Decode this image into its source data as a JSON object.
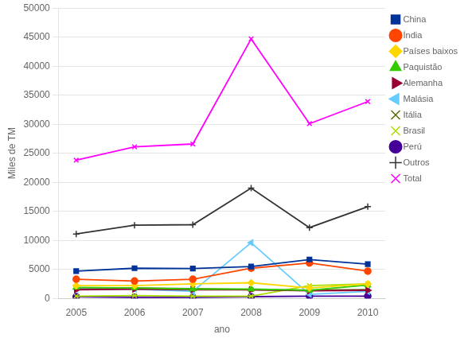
{
  "chart_data": {
    "type": "line",
    "x": [
      2005,
      2006,
      2007,
      2008,
      2009,
      2010
    ],
    "series": [
      {
        "name": "China",
        "color": "#003399",
        "marker": "square",
        "values": [
          4700,
          5200,
          5150,
          5500,
          6700,
          5900
        ]
      },
      {
        "name": "Índia",
        "color": "#FF4500",
        "marker": "circle",
        "values": [
          3300,
          3000,
          3300,
          5200,
          6100,
          4700
        ]
      },
      {
        "name": "Países baixos",
        "color": "#FFD700",
        "marker": "diamond",
        "values": [
          2200,
          2200,
          2500,
          2700,
          1800,
          2500
        ]
      },
      {
        "name": "Paquistão",
        "color": "#33CC00",
        "marker": "triangle-up",
        "values": [
          1900,
          1800,
          1600,
          1600,
          1400,
          2300
        ]
      },
      {
        "name": "Alemanha",
        "color": "#990033",
        "marker": "triangle-right",
        "values": [
          1500,
          1600,
          1500,
          1500,
          1300,
          1400
        ]
      },
      {
        "name": "Malásia",
        "color": "#66CCFF",
        "marker": "triangle-left",
        "values": [
          1600,
          1600,
          1200,
          9600,
          700,
          1200
        ]
      },
      {
        "name": "Itália",
        "color": "#556B00",
        "marker": "x",
        "values": [
          1800,
          1800,
          1700,
          1500,
          1400,
          1500
        ]
      },
      {
        "name": "Brasil",
        "color": "#AADD00",
        "marker": "x",
        "values": [
          400,
          500,
          400,
          400,
          2200,
          2500
        ]
      },
      {
        "name": "Perú",
        "color": "#440099",
        "marker": "circle",
        "values": [
          300,
          200,
          200,
          300,
          400,
          400
        ]
      },
      {
        "name": "Outros",
        "color": "#333333",
        "marker": "plus",
        "values": [
          11100,
          12600,
          12700,
          19000,
          12200,
          15800
        ]
      },
      {
        "name": "Total",
        "color": "#FF00FF",
        "marker": "x",
        "values": [
          23800,
          26100,
          26600,
          44700,
          30100,
          33900
        ]
      }
    ],
    "xlabel": "ano",
    "ylabel": "Miles de TM",
    "xlim": [
      2004.7,
      2010.3
    ],
    "xticks": [
      2005,
      2006,
      2007,
      2008,
      2009,
      2010
    ],
    "ylim": [
      0,
      50000
    ],
    "yticks": [
      0,
      5000,
      10000,
      15000,
      20000,
      25000,
      30000,
      35000,
      40000,
      45000,
      50000
    ],
    "grid": "y",
    "legend": "right"
  }
}
